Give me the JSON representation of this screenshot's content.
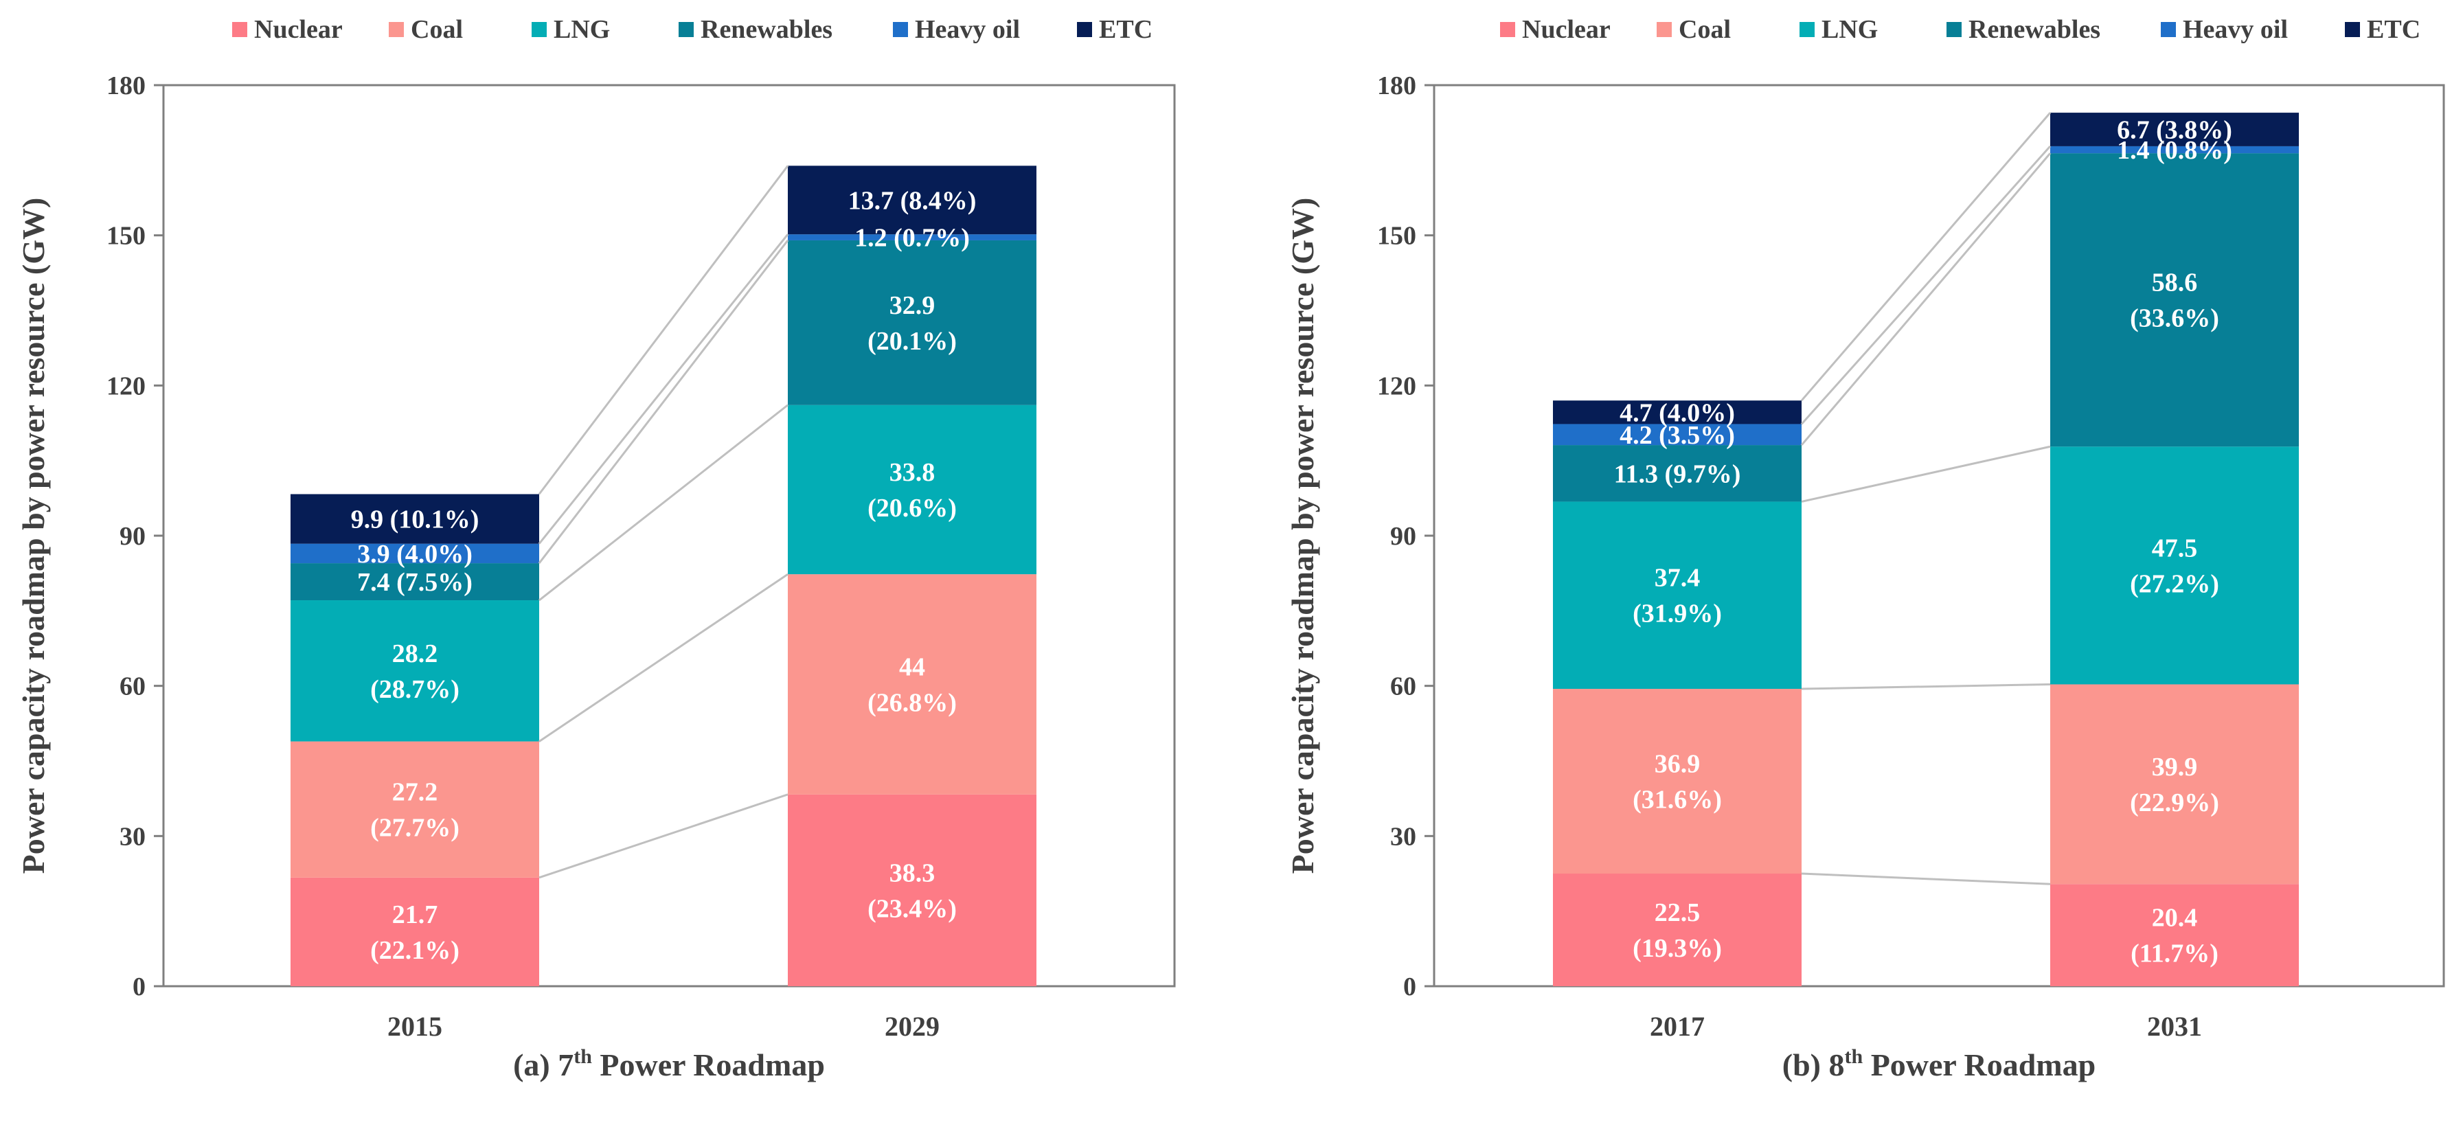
{
  "colors": {
    "Nuclear": "#fd7b86",
    "Coal": "#fb968f",
    "LNG": "#03adb5",
    "Renewables": "#077f96",
    "Heavy oil": "#1f6fc9",
    "ETC": "#061d55",
    "connector": "#bfbfbf",
    "axis": "#7f7f7f",
    "text": "#404040",
    "label_text": "#ffffff"
  },
  "chart_data": [
    {
      "type": "bar",
      "stacked": true,
      "title": "(a) 7th Power Roadmap",
      "title_parts": {
        "prefix": "(a) 7",
        "superscript": "th",
        "suffix": " Power Roadmap"
      },
      "ylabel": "Power capacity roadmap by  power resource (GW)",
      "ylim": [
        0,
        180
      ],
      "yticks": [
        0,
        30,
        60,
        90,
        120,
        150,
        180
      ],
      "ytick_labels": [
        "0",
        "30",
        "60",
        "90",
        "120",
        "150",
        "180"
      ],
      "legend": [
        "Nuclear",
        "Coal",
        "LNG",
        "Renewables",
        "Heavy oil",
        "ETC"
      ],
      "legend_position": "top",
      "categories": [
        "2015",
        "2029"
      ],
      "series": [
        {
          "name": "Nuclear",
          "values": [
            21.7,
            38.3
          ],
          "labels": [
            "21.7\n(22.1%)",
            "38.3\n(23.4%)"
          ]
        },
        {
          "name": "Coal",
          "values": [
            27.2,
            44.0
          ],
          "labels": [
            "27.2\n(27.7%)",
            "44\n(26.8%)"
          ]
        },
        {
          "name": "LNG",
          "values": [
            28.2,
            33.8
          ],
          "labels": [
            "28.2\n(28.7%)",
            "33.8\n(20.6%)"
          ]
        },
        {
          "name": "Renewables",
          "values": [
            7.4,
            32.9
          ],
          "labels": [
            "7.4 (7.5%)",
            "32.9\n(20.1%)"
          ]
        },
        {
          "name": "Heavy oil",
          "values": [
            3.9,
            1.2
          ],
          "labels": [
            "3.9 (4.0%)",
            "1.2 (0.7%)"
          ]
        },
        {
          "name": "ETC",
          "values": [
            9.9,
            13.7
          ],
          "labels": [
            "9.9 (10.1%)",
            "13.7 (8.4%)"
          ]
        }
      ]
    },
    {
      "type": "bar",
      "stacked": true,
      "title": "(b) 8th Power Roadmap",
      "title_parts": {
        "prefix": "(b) 8",
        "superscript": "th",
        "suffix": " Power Roadmap"
      },
      "ylabel": "Power capacity roadmap by  power resource (GW)",
      "ylim": [
        0,
        180
      ],
      "yticks": [
        0,
        30,
        60,
        90,
        120,
        150,
        180
      ],
      "ytick_labels": [
        "0",
        "30",
        "60",
        "90",
        "120",
        "150",
        "180"
      ],
      "legend": [
        "Nuclear",
        "Coal",
        "LNG",
        "Renewables",
        "Heavy oil",
        "ETC"
      ],
      "legend_position": "top",
      "categories": [
        "2017",
        "2031"
      ],
      "series": [
        {
          "name": "Nuclear",
          "values": [
            22.5,
            20.4
          ],
          "labels": [
            "22.5\n(19.3%)",
            "20.4\n(11.7%)"
          ]
        },
        {
          "name": "Coal",
          "values": [
            36.9,
            39.9
          ],
          "labels": [
            "36.9\n(31.6%)",
            "39.9\n(22.9%)"
          ]
        },
        {
          "name": "LNG",
          "values": [
            37.4,
            47.5
          ],
          "labels": [
            "37.4\n(31.9%)",
            "47.5\n(27.2%)"
          ]
        },
        {
          "name": "Renewables",
          "values": [
            11.3,
            58.6
          ],
          "labels": [
            "11.3 (9.7%)",
            "58.6\n(33.6%)"
          ]
        },
        {
          "name": "Heavy oil",
          "values": [
            4.2,
            1.4
          ],
          "labels": [
            "4.2 (3.5%)",
            "1.4 (0.8%)"
          ]
        },
        {
          "name": "ETC",
          "values": [
            4.7,
            6.7
          ],
          "labels": [
            "4.7 (4.0%)",
            "6.7 (3.8%)"
          ]
        }
      ]
    }
  ]
}
